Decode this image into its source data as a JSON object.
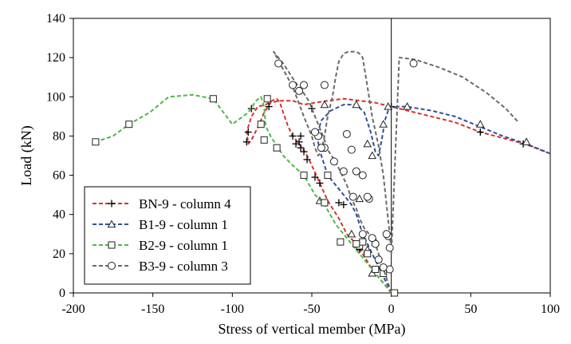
{
  "chart_data": {
    "type": "line",
    "title": "",
    "xlabel": "Stress of vertical member (MPa)",
    "ylabel": "Load (kN)",
    "xlim": [
      -200,
      100
    ],
    "ylim": [
      0,
      140
    ],
    "xticks": [
      -200,
      -150,
      -100,
      -50,
      0,
      50,
      100
    ],
    "yticks": [
      0,
      20,
      40,
      60,
      80,
      100,
      120,
      140
    ],
    "grid": false,
    "legend_position": "bottom-left",
    "reference_line_x": 0,
    "series": [
      {
        "name": "BN-9 - column 4",
        "color": "#d6322c",
        "marker": "plus",
        "x": [
          0,
          -5,
          -12,
          -18,
          -22,
          -28,
          -33,
          -40,
          -45,
          -50,
          -53,
          -56,
          -59,
          -62,
          -65,
          -68,
          -70,
          -72,
          -75,
          -79,
          -84,
          -88,
          -91,
          -90,
          -88,
          -83,
          -80,
          -76,
          -70,
          -62,
          -55,
          -48,
          -40,
          -30,
          -20,
          -10,
          0,
          20,
          40,
          56,
          70,
          84,
          100
        ],
        "y": [
          0,
          5,
          12,
          20,
          25,
          30,
          38,
          47,
          56,
          65,
          70,
          74,
          77,
          80,
          85,
          92,
          97,
          99,
          98,
          96,
          95,
          90,
          82,
          76,
          78,
          86,
          92,
          97,
          98,
          98,
          96,
          97,
          98,
          99,
          98,
          97,
          95,
          91,
          87,
          82,
          79,
          76,
          71
        ],
        "marker_x": [
          -20,
          -18,
          -30,
          -33,
          -45,
          -48,
          -53,
          -55,
          -57,
          -60,
          -58,
          -62,
          -90,
          -91,
          -77,
          -88,
          -57,
          -50,
          0,
          56,
          83
        ],
        "marker_y": [
          22,
          26,
          45,
          46,
          56,
          59,
          68,
          72,
          74,
          76,
          77,
          80,
          82,
          77,
          95,
          94,
          80,
          94,
          95,
          82,
          76
        ]
      },
      {
        "name": "B1-9 - column 1",
        "color": "#2f4f9f",
        "marker": "triangle",
        "x": [
          0,
          -3,
          -6,
          -9,
          -12,
          -15,
          -18,
          -20,
          -22,
          -25,
          -30,
          -35,
          -40,
          -44,
          -47,
          -44,
          -38,
          -30,
          -22,
          -17,
          -13,
          -10,
          -8,
          -6,
          -4,
          -2,
          0,
          10,
          25,
          40,
          55,
          70,
          85,
          100
        ],
        "y": [
          0,
          5,
          10,
          15,
          20,
          25,
          30,
          35,
          40,
          45,
          50,
          55,
          60,
          70,
          80,
          88,
          93,
          96,
          96,
          92,
          82,
          72,
          70,
          78,
          88,
          93,
          95,
          95,
          93,
          90,
          85,
          80,
          76,
          71
        ],
        "marker_x": [
          -12,
          -15,
          -10,
          -25,
          -20,
          -45,
          -42,
          -22,
          -15,
          -12,
          -5,
          -2,
          10,
          56,
          85
        ],
        "marker_y": [
          10,
          22,
          26,
          30,
          48,
          47,
          96,
          96,
          76,
          70,
          86,
          95,
          95,
          86,
          77
        ],
        "marker_open": true
      },
      {
        "name": "B2-9 - column 1",
        "color": "#4db845",
        "marker": "square",
        "x": [
          0,
          -5,
          -12,
          -20,
          -25,
          -30,
          -35,
          -42,
          -48,
          -55,
          -62,
          -68,
          -72,
          -76,
          -79,
          -80,
          -82,
          -85,
          -90,
          -100,
          -112,
          -125,
          -140,
          -152,
          -165,
          -175,
          -186
        ],
        "y": [
          0,
          5,
          12,
          20,
          25,
          30,
          35,
          45,
          50,
          60,
          65,
          70,
          75,
          80,
          85,
          95,
          100,
          98,
          92,
          86,
          99,
          101,
          100,
          92,
          86,
          80,
          77
        ],
        "marker_x": [
          2,
          -5,
          -10,
          -15,
          -20,
          -18,
          -22,
          -32,
          -42,
          -55,
          -40,
          -72,
          -80,
          -78,
          -82,
          -112,
          -165,
          -186
        ],
        "marker_y": [
          0,
          10,
          12,
          20,
          24,
          26,
          25,
          26,
          46,
          60,
          60,
          74,
          78,
          99,
          86,
          99,
          86,
          77
        ],
        "marker_open": true
      },
      {
        "name": "B3-9 - column 3",
        "color": "#6a6a6a",
        "marker": "circle",
        "x": [
          0,
          -2,
          -4,
          -6,
          -8,
          -10,
          -12,
          -14,
          -17,
          -20,
          -22,
          -25,
          -28,
          -32,
          -36,
          -40,
          -42,
          -44,
          -46,
          -48,
          -52,
          -56,
          -60,
          -64,
          -68,
          -71,
          -74,
          -70,
          -62,
          -55,
          -50,
          -48,
          -46,
          -44,
          -42,
          -40,
          -37,
          -35,
          -33,
          -30,
          -27,
          -25,
          -22,
          -20,
          -18,
          -15,
          -12,
          -8,
          -5,
          -3,
          -1,
          0,
          5,
          15,
          30,
          45,
          60,
          72,
          80
        ],
        "y": [
          0,
          5,
          10,
          15,
          20,
          25,
          29,
          30,
          33,
          38,
          43,
          48,
          55,
          62,
          68,
          73,
          78,
          82,
          86,
          90,
          98,
          103,
          107,
          112,
          117,
          120,
          123,
          117,
          105,
          90,
          80,
          74,
          70,
          72,
          80,
          90,
          100,
          110,
          118,
          122,
          123,
          123,
          123,
          122,
          120,
          105,
          90,
          75,
          60,
          45,
          30,
          20,
          120,
          119,
          115,
          110,
          102,
          94,
          87
        ],
        "marker_x": [
          -1,
          -1,
          -2,
          -3,
          -5,
          -8,
          -10,
          -12,
          -18,
          -24,
          -30,
          -36,
          -42,
          -46,
          -48,
          -58,
          -62,
          -71,
          -55,
          -42,
          -44,
          -28,
          -25,
          -22,
          -18,
          -14,
          -15,
          14
        ],
        "marker_y": [
          12,
          23,
          29,
          30,
          13,
          17,
          25,
          28,
          30,
          49,
          62,
          67,
          74,
          80,
          82,
          103,
          106,
          117,
          106,
          106,
          74,
          81,
          73,
          62,
          60,
          48,
          49,
          117
        ],
        "marker_open": true
      }
    ]
  }
}
